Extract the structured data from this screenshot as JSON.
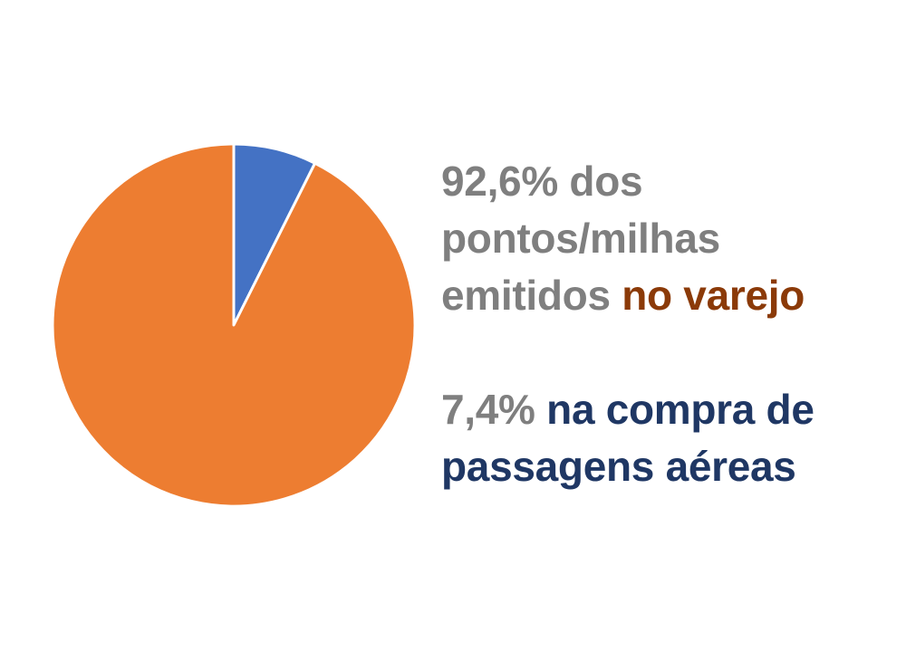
{
  "chart_data": {
    "type": "pie",
    "start_angle_deg": 0,
    "direction": "clockwise",
    "slices": [
      {
        "label": "7,4% na compra de passagens aéreas",
        "value": 7.4,
        "color": "#4472c4"
      },
      {
        "label": "92,6% dos pontos/milhas emitidos no varejo",
        "value": 92.6,
        "color": "#ed7d31"
      }
    ]
  },
  "annotations": {
    "retail": {
      "line1": "92,6% dos",
      "line2": "pontos/milhas",
      "line3_gray": "emitidos ",
      "line3_highlight": "no varejo"
    },
    "airfare": {
      "line1_gray": "7,4% ",
      "line1_highlight": "na compra de",
      "line2_highlight": "passagens aéreas"
    }
  }
}
